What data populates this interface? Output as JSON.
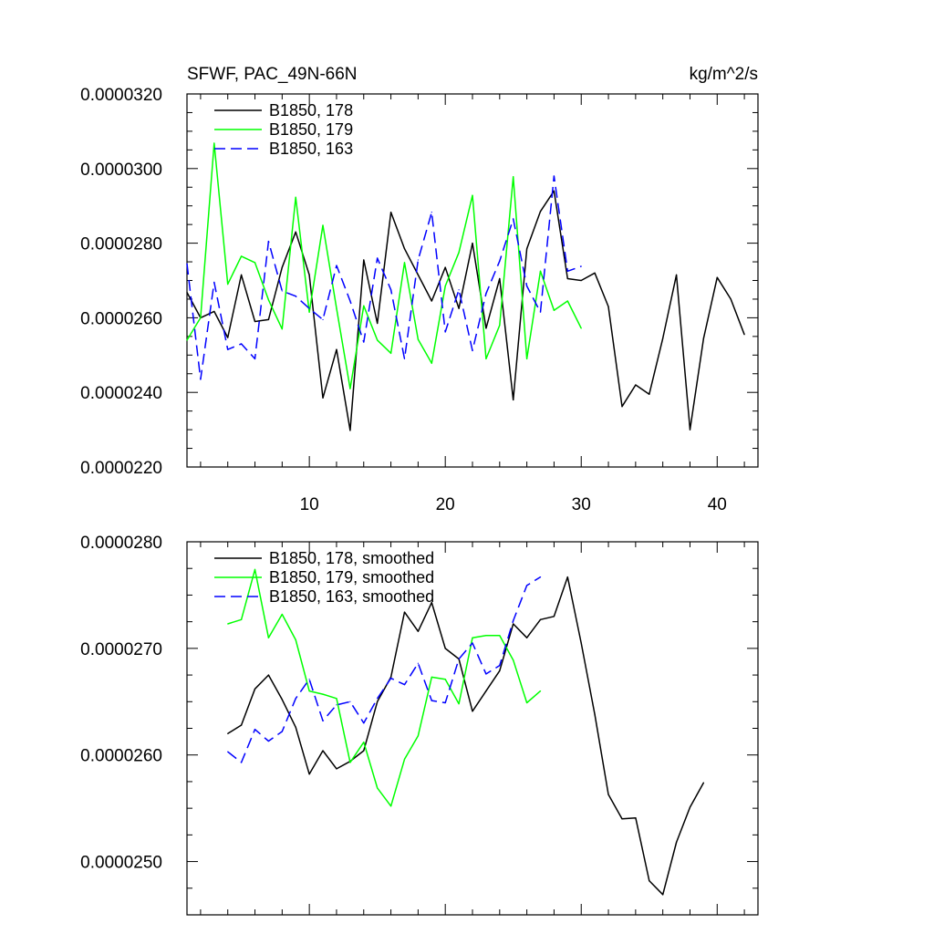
{
  "chart_data": [
    {
      "type": "line",
      "title_left": "SFWF, PAC_49N-66N",
      "title_right": "kg/m^2/s",
      "xlabel": "",
      "ylabel": "",
      "xlim": [
        1,
        43
      ],
      "ylim": [
        2.2e-05,
        3.2e-05
      ],
      "x_ticks": [
        10,
        20,
        30,
        40
      ],
      "x_tick_labels": [
        "10",
        "20",
        "30",
        "40"
      ],
      "y_ticks": [
        2.2e-05,
        2.4e-05,
        2.6e-05,
        2.8e-05,
        3e-05,
        3.2e-05
      ],
      "y_tick_labels": [
        "0.0000220",
        "0.0000240",
        "0.0000260",
        "0.0000280",
        "0.0000300",
        "0.0000320"
      ],
      "legend_position": "top-left",
      "series": [
        {
          "name": "B1850, 178",
          "color": "#000000",
          "dash": "solid",
          "x_start": 1,
          "values": [
            2.668e-05,
            2.6e-05,
            2.617e-05,
            2.547e-05,
            2.715e-05,
            2.59e-05,
            2.595e-05,
            2.735e-05,
            2.83e-05,
            2.715e-05,
            2.385e-05,
            2.515e-05,
            2.298e-05,
            2.755e-05,
            2.585e-05,
            2.883e-05,
            2.785e-05,
            2.715e-05,
            2.645e-05,
            2.735e-05,
            2.625e-05,
            2.8e-05,
            2.572e-05,
            2.705e-05,
            2.38e-05,
            2.785e-05,
            2.885e-05,
            2.94e-05,
            2.705e-05,
            2.7e-05,
            2.72e-05,
            2.63e-05,
            2.362e-05,
            2.42e-05,
            2.395e-05,
            2.545e-05,
            2.715e-05,
            2.3e-05,
            2.545e-05,
            2.708e-05,
            2.65e-05,
            2.555e-05
          ]
        },
        {
          "name": "B1850, 179",
          "color": "#00ff00",
          "dash": "solid",
          "x_start": 1,
          "values": [
            2.54e-05,
            2.6e-05,
            3.068e-05,
            2.69e-05,
            2.765e-05,
            2.748e-05,
            2.648e-05,
            2.57e-05,
            2.923e-05,
            2.615e-05,
            2.848e-05,
            2.625e-05,
            2.41e-05,
            2.632e-05,
            2.54e-05,
            2.505e-05,
            2.748e-05,
            2.542e-05,
            2.478e-05,
            2.685e-05,
            2.775e-05,
            2.928e-05,
            2.49e-05,
            2.58e-05,
            2.978e-05,
            2.49e-05,
            2.725e-05,
            2.62e-05,
            2.645e-05,
            2.572e-05
          ]
        },
        {
          "name": "B1850, 163",
          "color": "#0000ff",
          "dash": "dashed",
          "x_start": 1,
          "values": [
            2.745e-05,
            2.435e-05,
            2.695e-05,
            2.515e-05,
            2.53e-05,
            2.49e-05,
            2.805e-05,
            2.672e-05,
            2.658e-05,
            2.625e-05,
            2.595e-05,
            2.74e-05,
            2.645e-05,
            2.535e-05,
            2.76e-05,
            2.675e-05,
            2.49e-05,
            2.755e-05,
            2.883e-05,
            2.562e-05,
            2.675e-05,
            2.512e-05,
            2.665e-05,
            2.752e-05,
            2.865e-05,
            2.685e-05,
            2.615e-05,
            2.98e-05,
            2.725e-05,
            2.738e-05
          ]
        }
      ]
    },
    {
      "type": "line",
      "xlim": [
        1,
        43
      ],
      "ylim": [
        2.45e-05,
        2.8e-05
      ],
      "x_ticks": [
        10,
        20,
        30,
        40
      ],
      "y_ticks": [
        2.5e-05,
        2.6e-05,
        2.7e-05,
        2.8e-05
      ],
      "y_tick_labels": [
        "0.0000250",
        "0.0000260",
        "0.0000270",
        "0.0000280"
      ],
      "legend_position": "top-left",
      "series": [
        {
          "name": "B1850, 178, smoothed",
          "color": "#000000",
          "dash": "solid",
          "x_start": 4,
          "values": [
            2.62e-05,
            2.628e-05,
            2.662e-05,
            2.675e-05,
            2.652e-05,
            2.626e-05,
            2.582e-05,
            2.604e-05,
            2.587e-05,
            2.594e-05,
            2.604e-05,
            2.65e-05,
            2.673e-05,
            2.734e-05,
            2.716e-05,
            2.743e-05,
            2.7e-05,
            2.69e-05,
            2.641e-05,
            2.66e-05,
            2.679e-05,
            2.723e-05,
            2.71e-05,
            2.727e-05,
            2.73e-05,
            2.767e-05,
            2.705e-05,
            2.638e-05,
            2.563e-05,
            2.54e-05,
            2.541e-05,
            2.482e-05,
            2.469e-05,
            2.518e-05,
            2.551e-05,
            2.574e-05
          ]
        },
        {
          "name": "B1850, 179, smoothed",
          "color": "#00ff00",
          "dash": "solid",
          "x_start": 4,
          "values": [
            2.723e-05,
            2.727e-05,
            2.774e-05,
            2.71e-05,
            2.732e-05,
            2.708e-05,
            2.66e-05,
            2.657e-05,
            2.653e-05,
            2.593e-05,
            2.612e-05,
            2.569e-05,
            2.552e-05,
            2.596e-05,
            2.618e-05,
            2.673e-05,
            2.671e-05,
            2.648e-05,
            2.71e-05,
            2.712e-05,
            2.712e-05,
            2.689e-05,
            2.649e-05,
            2.66e-05
          ]
        },
        {
          "name": "B1850, 163, smoothed",
          "color": "#0000ff",
          "dash": "dashed",
          "x_start": 4,
          "values": [
            2.603e-05,
            2.593e-05,
            2.624e-05,
            2.613e-05,
            2.622e-05,
            2.653e-05,
            2.671e-05,
            2.632e-05,
            2.647e-05,
            2.65e-05,
            2.63e-05,
            2.653e-05,
            2.672e-05,
            2.666e-05,
            2.686e-05,
            2.651e-05,
            2.649e-05,
            2.69e-05,
            2.705e-05,
            2.676e-05,
            2.684e-05,
            2.726e-05,
            2.759e-05,
            2.767e-05
          ]
        }
      ]
    }
  ]
}
